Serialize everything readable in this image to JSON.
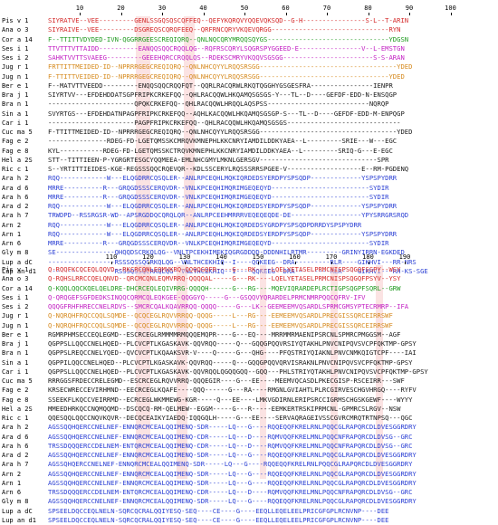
{
  "colors": {
    "red": "#d42a2a",
    "green": "#1f9a1f",
    "magenta": "#c21ec2",
    "orange": "#d68a1e",
    "black": "#1a1a1a",
    "blue": "#2a3fd4",
    "highlight_orange": "#f4c9a4",
    "highlight_pink": "#f7c1c1",
    "highlight_blue": "#b9c3f1",
    "highlight_gray": "#c9c9c9"
  },
  "block1": {
    "ruler": [
      "10",
      "20",
      "30",
      "40",
      "50",
      "60",
      "70",
      "80",
      "90",
      "100"
    ],
    "rows": [
      {
        "name": "Pis v 1",
        "seq": "SIYRATVE--VEE---------GENLSSGQSQSCQFFEQ--QEFYKQRQVYQQEVQKSQD--G-H----------------S-L--T-ARIN",
        "color": "red"
      },
      {
        "name": "Ana o 3",
        "seq": "SIYRAIVE--VEE---------DSGREQSCQRQFEEQ--QRFRNCQRYVKQEVQRGG------------------------------RYN",
        "color": "red"
      },
      {
        "name": "Cor a 14",
        "seq": "F--TTITTVDYDED-IVN-QGGRRGEESCREQIQRQ--QNLNQCQRYMRQQSQYGS-------------------------------YDGSN",
        "color": "green"
      },
      {
        "name": "Ses i 1",
        "seq": "TTVTTTVTTAIDD----------EANQQSQQCRQQLQG--RQFRSCQRYLSQGRSPYGGEED-E----------------V--L-EMSTGN",
        "color": "magenta"
      },
      {
        "name": "Ses i 2",
        "seq": "SAHKTVVTTSVAEEG---------GEEEHQRCCRQQLQS--RDEKSCMRYVKQQVSGSGG-----------------------S-S-ARAN",
        "color": "magenta"
      },
      {
        "name": "Jug r 1",
        "seq": "FRTTITTMEIDED-ID--NPRRRGEGCREQIQRQ--QNLNHCQYYLRQQSRSGG-----------------------------------YDED",
        "color": "orange"
      },
      {
        "name": "Jug n 1",
        "seq": "F-TTITTVEIDED-ID--NPRRRGEGCREQIQRQ--QNLNHCQYYLRQQSRSGG---------------------------------YDED",
        "color": "orange"
      },
      {
        "name": "Ber e 1",
        "seq": "F--MATVTTVEEDD---------ENQQSQQCRQQFQT--QQRLRACQRWLRKQTQGGHYGSGESFRA----------------IENPR",
        "color": "black"
      },
      {
        "name": "Bra j 1",
        "seq": "SIYRTVV---EFDEHDDATSGPFRIPKCRKEFQQ--QHLRACQQWLHKQAMQSGSGS-Y---TL--D----GEFDF-EDD-N-ENSQGP",
        "color": "black"
      },
      {
        "name": "Bra n 1",
        "seq": "----------------------QPQKCRKEFQQ--QHLRACQQWLHRQQLAQSPSS--------------------------NQRQP",
        "color": "black"
      },
      {
        "name": "Sin a 1",
        "seq": "SVYRTGS---EFDEHDATNPAGPFRIPKCRKEFQQ--AQHLKACQQWLHKQAMQSGSGP-S---TL--D----GEFDF-EDD-M-ENPQGP",
        "color": "black"
      },
      {
        "name": "Car i 1",
        "seq": "----------------------PAGPFRIPKCRKEFQQ--QHLRACQQWLHKQAMQSGSGS-----------------------------",
        "color": "black"
      },
      {
        "name": "Cuc ma 5",
        "seq": "F-TTITTMEIDED-ID--NPRRRGEGCREQIQRQ--QNLNHCQYYLRQQSRSGG-----------------------------------YDED",
        "color": "black"
      },
      {
        "name": "Fag e 2",
        "seq": "---------------RDEG-FD-LGETQMSSKCMRQVKMNEPHLKKCNRYIAMDILDDKYAEA--L---------SRIE---W---EGC",
        "color": "black"
      },
      {
        "name": "Fag e 8",
        "seq": "KYL-----------RDEG-FD-LGETQMSSKCTRQVKMNEPHLKKCNRYIAMDILDDKYAEA--L---------SRIQ-G---E-EGC",
        "color": "black"
      },
      {
        "name": "Hel a 2S",
        "seq": "STT--TITTIEEN-P-YGRGRTESGCYQQMEEA-EMLNHCGMYLMKNLGERSGV------------------------------SPR",
        "color": "black"
      },
      {
        "name": "Ric c 1",
        "seq": "S--YRTITTIEIDES-KGE-REGSSSQQCRQEVQR--KDLSSCERYLRQSSSRRSPGEE-V-------------------E--RM-PGDENQ",
        "color": "black"
      },
      {
        "name": "Ara h 2",
        "seq": "RQQ------------W---ELQGDRRCQSQLER--ANLRPCEQHLMQKIQRDEDSYERDPYSPSQDP-------------YSPSPYDRR",
        "color": "blue"
      },
      {
        "name": "Ara d 6",
        "seq": "MRRE----------R---GRQGDSSSCERQVDR--VNLKPCEQHIMQRIMGEQEQYD-------------------------SYDIR",
        "color": "blue"
      },
      {
        "name": "Ara h 6",
        "seq": "MRRE----------R---GRQGDSSSCERQVDR--VNLKPCEQHIMQRIMGEQEQYD-------------------------SYDIR",
        "color": "blue"
      },
      {
        "name": "Ara d 2",
        "seq": "RQQ------------W---ELQGDRRCQSQLER--ANLRPCEQHLMQKIQRDEDSYERDPYSPSQDP-------------YSPSPYDRR",
        "color": "blue"
      },
      {
        "name": "Ara h 7",
        "seq": "TRWDPD--RSSRGSR-WD--APSRGDDQCQRQLQR--ANLRPCEEHMRRRVEQEQEQDE-DE------------------YPYSRRGRSRQD",
        "color": "blue"
      },
      {
        "name": "Arn 2",
        "seq": "RQQ------------W---ELQGDRRCQSQLER--ANLRPCEQHLMQKIQRDEDSYGRDPYSPSQDPDRRDYSPSPYDRR",
        "color": "blue"
      },
      {
        "name": "Arn 1",
        "seq": "RQQ------------W---ELQGDRRCQSQLER--ANLRPCEQHLMQKIQRDEDSYERDPYSPSQDP-------------YSPSPYDRR",
        "color": "blue"
      },
      {
        "name": "Arn 6",
        "seq": "MRRE----------R---GRQGDSSSCERQVDR--VNLKPCEQHIMQRIMGEQEQYD-------------------------SYDIR",
        "color": "blue"
      },
      {
        "name": "Gly m 8",
        "seq": "SE---------------QHQQDSCRKQLQG--VNLTPCEKHIMEKIQGRGDDDD-DDDNHILRTMR---------GRINYIRRN-EGKDED",
        "color": "blue"
      },
      {
        "name": "Lup a dC",
        "seq": "-----------------RSSSQSSQCRKQLQG--VNLTHCEKHIQ--I----QQKEEG--DRA---------RLR----GIKHVI---RR-NRS",
        "color": "blue"
      },
      {
        "name": "Lup an d1",
        "seq": "-----------------RSSSQSSQCRKQLQG--VNLTHCEKHIQ--I----QQKEEG--DRA---------RLR----GIKHVI---RH-KS-SGE",
        "color": "blue"
      }
    ]
  },
  "block2": {
    "ruler": [
      "110",
      "120",
      "130",
      "140",
      "150",
      "160",
      "170",
      "180",
      "190"
    ],
    "rows": [
      {
        "name": "Pis v 1",
        "seq": "Q-RQQFKCQCEQLQQVD--RKCRCQNLEQMVKRQ-QQQQGQFR----G---RK----LQELYETASELPRMCNISPSQGQFSSPY--WSY",
        "color": "red"
      },
      {
        "name": "Ana o 3",
        "seq": "Q-RQHSLRRCCQELQNVD--QRCMCQNLEQMVRRQ-QQQQAL-----G---RK----LQELYETASELPRMCNISPSQGQFPSYV--YSY",
        "color": "red"
      },
      {
        "name": "Cor a 14",
        "seq": "Q-KQQLQQCKQELQELDRE-DHCRCEQLEQIVRRG-QQQQH------G---RG----MQEVIQRARDEPLRCTIGPSQGPFSQRL--GRW",
        "color": "green"
      },
      {
        "name": "Ses i 1",
        "seq": "Q-QRQGEFSGFDEDKSINQQCQRMCQLEQKGEE-QQGGYQ-----G---GSQQVYQRARDELPRMCNMRPQQCQFRV-IFV",
        "color": "magenta"
      },
      {
        "name": "Ses i 2",
        "seq": "QQQGFRHFHRECCNELRDVS--SMCRCQALKQAVRRQQ-QQQQ-----G---LK--GEEMEEMVQSARDLSPRMCGMSYPTECRMRP--IFA",
        "color": "magenta"
      },
      {
        "name": "Jug r 1",
        "seq": "Q-NQRQHFRQCCQQLSQMDE--QCQCEGLRQVVRRQQ-QQQG-----L---RG----EEMEEMVQSARDLPRECGISSQRCEIRRSWF",
        "color": "orange"
      },
      {
        "name": "Jug n 1",
        "seq": "Q-NQRQHFRQCCQQLSQMDE--QCQCEGLRQVVRRQQ-QQQG-----L---RG----EEMEEMVQSARDLPRECGISSQRCEIRRSWF",
        "color": "orange"
      },
      {
        "name": "Ber e 1",
        "seq": "RGMRPHMSECCEQLEGMD--ESCRCEGLRMMMMRMQQQEMQPR----G---EQ----MRRMMRMAENIPSRCNLSPMRCPMGGSM--AGF",
        "color": "black"
      },
      {
        "name": "Bra j 1",
        "seq": "QGPPSLLQQCCNELHQED--PLCVCPTLKGASKAVK-QQVRQQ-----Q---GQQGPQQVRSIYQTAKHLPNVCNIPQVSVCPFQKTMP-GPSY",
        "color": "black"
      },
      {
        "name": "Bra n 1",
        "seq": "QGPPSLREQCCNELYQED--QVCVCPTLKQAAKSVR-V----Q-----G---QHG----PFQSTRIYQIAKNLPNVCNMKQIGTCPF----IAI",
        "color": "black"
      },
      {
        "name": "Sin a 1",
        "seq": "QGPPILQQCCNELHQED--PLCVCPTLKGASKAVK-QQVRQQ-----Q---GQQGPQQVQRVISRAKNLPNVCNIPQVSVCPFQKTMP-GPSY",
        "color": "black"
      },
      {
        "name": "Car i 1",
        "seq": "QGPPSLLQQCCNELHQED--PLCVCPTLKGASKAVK-QQVRQQLQGQQGQQ--GQQ---PHLSTRIYQTAKHLPNVCNIPQVSVCPFQKTMP-GPSY",
        "color": "black"
      },
      {
        "name": "Cuc ma 5",
        "seq": "RRRGGSFRDECCRELEGMD--ESCRCEGLRQVVRRQ-QQQEGIR----G---EE----MEEMVQCASDLPKECGISP-RSCEIRR---SWF",
        "color": "black"
      },
      {
        "name": "Fag e 2",
        "seq": "KRSECWRECCEVIRHMND--EECRCEGLKQAFE----QQQ------G---RA----RMGNLGVIAHTLPLRCGIRVESCHGVHRGQ----RYFV",
        "color": "black"
      },
      {
        "name": "Fag e 8",
        "seq": "SSEEKFLKQCCVEIRRMD--ECRCEGLWKMMEWG-KGR-----Q---EE----LMKVGDIRNLERIPSRCCIGRMSCHGSKGEWF----WYYY",
        "color": "black"
      },
      {
        "name": "Hel a 2S",
        "seq": "MMEEDHRKQCCNQMQQMD--DSCQCQ-RM-QELMEW--EGGM-----G---R-----EEMKERTRSKIPRMCNL-GPMRCSLRGV--NSW",
        "color": "black"
      },
      {
        "name": "Ric c 1",
        "seq": "QQESQQLQQCCNQVKQVR--DECQCEAIKYIAEDQ-IQQGQLH-----G---EE----SERVAQRAGEIVSSCGVRCMRQTRTNPSQ---QGC",
        "color": "black"
      },
      {
        "name": "Ara h 2",
        "seq": "AGSSQQHQERCCNELNEF-ENNQRCMCEALQQIMENQ-SDR-----LQ---G----RQQEQQFKRELRNLPQQCGLRAPQRCDLDVESGGRDRY",
        "color": "blue"
      },
      {
        "name": "Ara d 6",
        "seq": "AGSSQQHQERCCNELNEF-ENNQRCMCEALQQIMENQ-CDR-----LQ---D----RQMVQQFKRELMNLPQQCNFRAPQRCDLDVSG--GRC",
        "color": "blue"
      },
      {
        "name": "Ara h 6",
        "seq": "TRSSDQQQERCCDELNEM-ENTQRCMCEALQQIMENQ-CDR-----LQ---D----RQMVQQFKRELMNLPQQCNFRAPQRCDLDVSG--GRC",
        "color": "blue"
      },
      {
        "name": "Ara d 2",
        "seq": "AGSSQQHQERCCNELNEF-ENNQRCMCEALQQIMENQ-SDR-----LQ---G----RQQEQQFKRELRNLPQQCGLRAPQRCDLDVESGGRDRY",
        "color": "blue"
      },
      {
        "name": "Ara h 7",
        "seq": "AGSSQHQERCCNELNEF-ENNQRCMCEALQQIMENQ-SDR-----LQ---G----RQQEQQFKRELRNLPQQCGLRAPQRCDLDVESGGRDRY",
        "color": "blue"
      },
      {
        "name": "Arn 2",
        "seq": "AGSSQQHQERCCNELNEF-ENNQRCMCEALQQIMENQ-SDR-----LQ---G----RQQEQQFKRELRNLPQQCGLRAPQRCDLDVESGGRDRY",
        "color": "blue"
      },
      {
        "name": "Arn 1",
        "seq": "AGSSQQHQERCCNELNEF-ENNQRCMCEALQQIMENQ-SDR-----LQ---G----RQQEQQFKRELRNLPQQCGLRAPQRCDLDVESGGRDRY",
        "color": "blue"
      },
      {
        "name": "Arn 6",
        "seq": "TRSSDQQQERCCDELNEM-ENTQRCMCEALQQIMENQ-CDR-----LQ---D----RQMVQQFKRELMNLPQQCNFRAPQRCDLDVSG--GRC",
        "color": "blue"
      },
      {
        "name": "Gly m 8",
        "seq": "AGSSQQHQERCCNELNEF-ENNQRCMCEALQQIMENQ-SDR-----LQ---G----RQQEQQFKRELRNLPQQCGLRAPQRCDLDVESGGRDRY",
        "color": "blue"
      },
      {
        "name": "Lup a dC",
        "seq": "SPSEELDQCCEQLNELN-SQRCQCRALQQIYESQ-SEQ----CE----G----EEQLLEQELEELPRICGFGPLRCNVNP----DEE",
        "color": "blue"
      },
      {
        "name": "Lup an d1",
        "seq": "SPSEELDQCCEQLNELN-SQRCQCRALQQIYESQ-SEQ----CE----G----EEQLLEQELEELPRICGFGPLRCNVNP----DEE",
        "color": "blue"
      }
    ]
  }
}
